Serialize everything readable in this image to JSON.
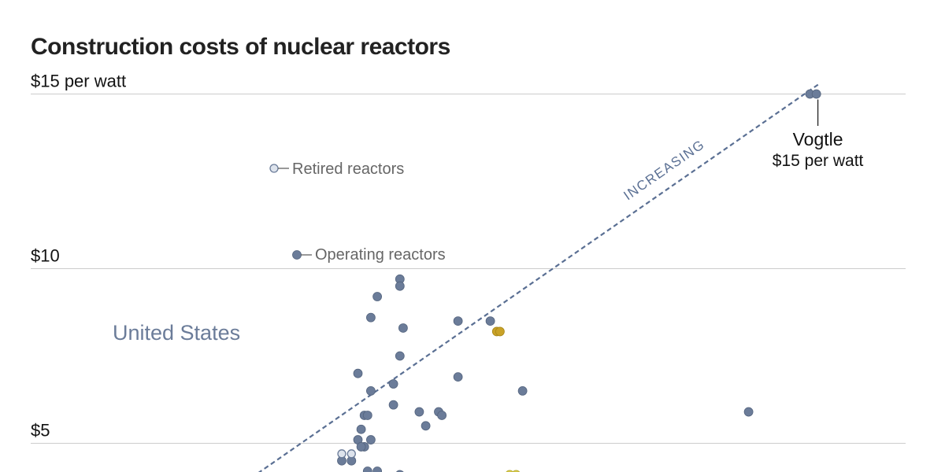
{
  "chart_data": {
    "type": "scatter",
    "title": "Construction costs of nuclear reactors",
    "y_unit_label": "$15 per watt",
    "ylim": [
      0,
      15
    ],
    "yticks": [
      {
        "value": 15,
        "label": "$15 per watt"
      },
      {
        "value": 10,
        "label": "$10"
      },
      {
        "value": 5,
        "label": "$5"
      }
    ],
    "grid": true,
    "legend": [
      {
        "label": "Retired reactors",
        "style": "open"
      },
      {
        "label": "Operating reactors",
        "style": "filled"
      }
    ],
    "group_label": "United States",
    "trend_label": "INCREASING",
    "trend_line": {
      "from": [
        0.4,
        3.5
      ],
      "to": [
        18.8,
        15.3
      ]
    },
    "annotation": {
      "name": "Vogtle",
      "value_label": "$15 per watt",
      "point": [
        18.6,
        15.0
      ]
    },
    "colors": {
      "operating": "#6b7c99",
      "retired_fill": "#dde3ec",
      "highlight": "#c9a227",
      "other": "#d6c94a",
      "grid": "#cccccc",
      "trend": "#5a6f93"
    },
    "series": [
      {
        "name": "Operating reactors",
        "points": [
          [
            18.5,
            15.0
          ],
          [
            18.7,
            15.0
          ],
          [
            5.8,
            9.7
          ],
          [
            5.8,
            9.5
          ],
          [
            5.1,
            9.2
          ],
          [
            4.9,
            8.6
          ],
          [
            5.9,
            8.3
          ],
          [
            7.6,
            8.5
          ],
          [
            8.6,
            8.5
          ],
          [
            5.8,
            7.5
          ],
          [
            4.5,
            7.0
          ],
          [
            7.6,
            6.9
          ],
          [
            5.6,
            6.7
          ],
          [
            4.9,
            6.5
          ],
          [
            9.6,
            6.5
          ],
          [
            5.6,
            6.1
          ],
          [
            7.0,
            5.9
          ],
          [
            7.1,
            5.8
          ],
          [
            6.4,
            5.9
          ],
          [
            4.7,
            5.8
          ],
          [
            4.8,
            5.8
          ],
          [
            6.6,
            5.5
          ],
          [
            4.6,
            5.4
          ],
          [
            4.5,
            5.1
          ],
          [
            4.9,
            5.1
          ],
          [
            4.7,
            4.9
          ],
          [
            4.6,
            4.9
          ],
          [
            4.3,
            4.5
          ],
          [
            4.0,
            4.5
          ],
          [
            4.8,
            4.2
          ],
          [
            5.1,
            4.2
          ],
          [
            5.8,
            4.1
          ],
          [
            3.9,
            4.0
          ],
          [
            16.6,
            5.9
          ]
        ]
      },
      {
        "name": "Retired reactors",
        "points": [
          [
            4.0,
            4.7
          ],
          [
            4.3,
            4.7
          ]
        ]
      },
      {
        "points": [
          [
            8.8,
            8.2
          ],
          [
            8.9,
            8.2
          ]
        ]
      },
      {
        "points": [
          [
            9.2,
            4.1
          ],
          [
            9.4,
            4.1
          ]
        ]
      }
    ]
  }
}
